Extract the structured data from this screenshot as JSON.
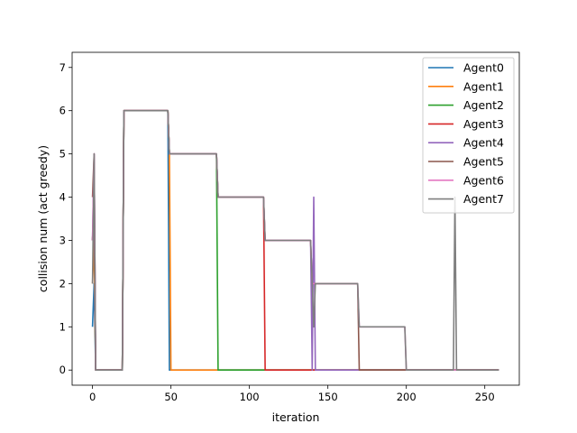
{
  "chart_data": {
    "type": "line",
    "title": "",
    "xlabel": "iteration",
    "ylabel": "collision num (act greedy)",
    "xlim": [
      -13,
      272
    ],
    "ylim": [
      -0.35,
      7.35
    ],
    "xticks": [
      0,
      50,
      100,
      150,
      200,
      250
    ],
    "yticks": [
      0,
      1,
      2,
      3,
      4,
      5,
      6,
      7
    ],
    "grid": false,
    "legend_position": "top-right",
    "colors": [
      "#1f77b4",
      "#ff7f0e",
      "#2ca02c",
      "#d62728",
      "#9467bd",
      "#8c564b",
      "#e377c2",
      "#7f7f7f"
    ],
    "series": [
      {
        "name": "Agent0",
        "points": [
          [
            0,
            1
          ],
          [
            1,
            2
          ],
          [
            2,
            0
          ],
          [
            19,
            0
          ],
          [
            20,
            6
          ],
          [
            48,
            6
          ],
          [
            49,
            0
          ],
          [
            259,
            0
          ]
        ]
      },
      {
        "name": "Agent1",
        "points": [
          [
            0,
            2
          ],
          [
            1,
            3
          ],
          [
            2,
            0
          ],
          [
            19,
            0
          ],
          [
            20,
            6
          ],
          [
            48,
            6
          ],
          [
            49,
            5
          ],
          [
            50,
            0
          ],
          [
            259,
            0
          ]
        ]
      },
      {
        "name": "Agent2",
        "points": [
          [
            0,
            3
          ],
          [
            1,
            4
          ],
          [
            2,
            0
          ],
          [
            19,
            0
          ],
          [
            20,
            6
          ],
          [
            48,
            6
          ],
          [
            49,
            5
          ],
          [
            79,
            5
          ],
          [
            80,
            0
          ],
          [
            259,
            0
          ]
        ]
      },
      {
        "name": "Agent3",
        "points": [
          [
            0,
            3
          ],
          [
            1,
            4
          ],
          [
            2,
            0
          ],
          [
            19,
            0
          ],
          [
            20,
            6
          ],
          [
            48,
            6
          ],
          [
            49,
            5
          ],
          [
            79,
            5
          ],
          [
            80,
            4
          ],
          [
            109,
            4
          ],
          [
            110,
            0
          ],
          [
            259,
            0
          ]
        ]
      },
      {
        "name": "Agent4",
        "points": [
          [
            0,
            3
          ],
          [
            1,
            5
          ],
          [
            2,
            0
          ],
          [
            19,
            0
          ],
          [
            20,
            6
          ],
          [
            48,
            6
          ],
          [
            49,
            5
          ],
          [
            79,
            5
          ],
          [
            80,
            4
          ],
          [
            109,
            4
          ],
          [
            110,
            3
          ],
          [
            139,
            3
          ],
          [
            140,
            0
          ],
          [
            141,
            4
          ],
          [
            142,
            0
          ],
          [
            259,
            0
          ]
        ]
      },
      {
        "name": "Agent5",
        "points": [
          [
            0,
            4
          ],
          [
            1,
            5
          ],
          [
            2,
            0
          ],
          [
            19,
            0
          ],
          [
            20,
            6
          ],
          [
            48,
            6
          ],
          [
            49,
            5
          ],
          [
            79,
            5
          ],
          [
            80,
            4
          ],
          [
            109,
            4
          ],
          [
            110,
            3
          ],
          [
            139,
            3
          ],
          [
            140,
            2
          ],
          [
            169,
            2
          ],
          [
            170,
            0
          ],
          [
            259,
            0
          ]
        ]
      },
      {
        "name": "Agent6",
        "points": [
          [
            0,
            3
          ],
          [
            1,
            5
          ],
          [
            2,
            0
          ],
          [
            19,
            0
          ],
          [
            20,
            6
          ],
          [
            48,
            6
          ],
          [
            49,
            5
          ],
          [
            79,
            5
          ],
          [
            80,
            4
          ],
          [
            109,
            4
          ],
          [
            110,
            3
          ],
          [
            139,
            3
          ],
          [
            140,
            2
          ],
          [
            169,
            2
          ],
          [
            170,
            1
          ],
          [
            199,
            1
          ],
          [
            200,
            0
          ],
          [
            259,
            0
          ]
        ]
      },
      {
        "name": "Agent7",
        "points": [
          [
            0,
            2
          ],
          [
            1,
            5
          ],
          [
            2,
            0
          ],
          [
            19,
            0
          ],
          [
            20,
            6
          ],
          [
            48,
            6
          ],
          [
            49,
            5
          ],
          [
            79,
            5
          ],
          [
            80,
            4
          ],
          [
            109,
            4
          ],
          [
            110,
            3
          ],
          [
            139,
            3
          ],
          [
            140,
            2
          ],
          [
            141,
            1
          ],
          [
            142,
            2
          ],
          [
            169,
            2
          ],
          [
            170,
            1
          ],
          [
            199,
            1
          ],
          [
            200,
            0
          ],
          [
            230,
            0
          ],
          [
            231,
            4
          ],
          [
            232,
            0
          ],
          [
            259,
            0
          ]
        ]
      }
    ]
  }
}
